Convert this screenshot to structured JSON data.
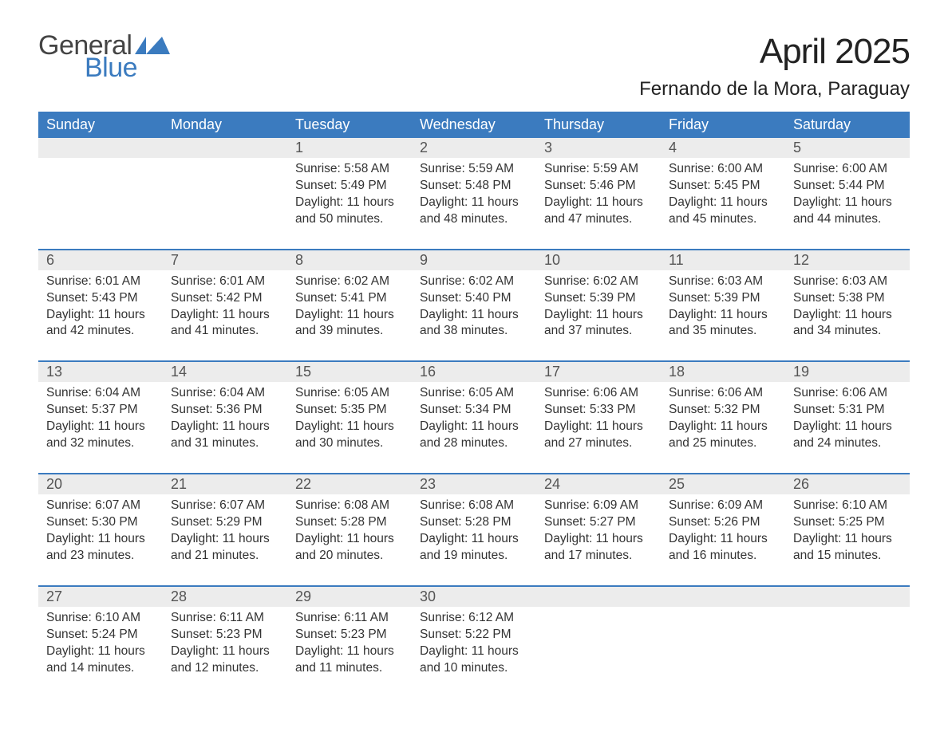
{
  "logo": {
    "word1": "General",
    "word2": "Blue",
    "color_general": "#444444",
    "color_blue": "#3b7bbf"
  },
  "title": "April 2025",
  "location": "Fernando de la Mora, Paraguay",
  "colors": {
    "header_bg": "#3b7bbf",
    "header_text": "#ffffff",
    "daynum_bg": "#ececec",
    "daynum_text": "#555555",
    "body_text": "#333333",
    "separator": "#3b7bbf",
    "page_bg": "#ffffff"
  },
  "typography": {
    "title_fontsize": 44,
    "location_fontsize": 24,
    "header_fontsize": 18,
    "daynum_fontsize": 18,
    "cell_fontsize": 15.5
  },
  "day_names": [
    "Sunday",
    "Monday",
    "Tuesday",
    "Wednesday",
    "Thursday",
    "Friday",
    "Saturday"
  ],
  "weeks": [
    [
      null,
      null,
      {
        "n": "1",
        "sr": "Sunrise: 5:58 AM",
        "ss": "Sunset: 5:49 PM",
        "d1": "Daylight: 11 hours",
        "d2": "and 50 minutes."
      },
      {
        "n": "2",
        "sr": "Sunrise: 5:59 AM",
        "ss": "Sunset: 5:48 PM",
        "d1": "Daylight: 11 hours",
        "d2": "and 48 minutes."
      },
      {
        "n": "3",
        "sr": "Sunrise: 5:59 AM",
        "ss": "Sunset: 5:46 PM",
        "d1": "Daylight: 11 hours",
        "d2": "and 47 minutes."
      },
      {
        "n": "4",
        "sr": "Sunrise: 6:00 AM",
        "ss": "Sunset: 5:45 PM",
        "d1": "Daylight: 11 hours",
        "d2": "and 45 minutes."
      },
      {
        "n": "5",
        "sr": "Sunrise: 6:00 AM",
        "ss": "Sunset: 5:44 PM",
        "d1": "Daylight: 11 hours",
        "d2": "and 44 minutes."
      }
    ],
    [
      {
        "n": "6",
        "sr": "Sunrise: 6:01 AM",
        "ss": "Sunset: 5:43 PM",
        "d1": "Daylight: 11 hours",
        "d2": "and 42 minutes."
      },
      {
        "n": "7",
        "sr": "Sunrise: 6:01 AM",
        "ss": "Sunset: 5:42 PM",
        "d1": "Daylight: 11 hours",
        "d2": "and 41 minutes."
      },
      {
        "n": "8",
        "sr": "Sunrise: 6:02 AM",
        "ss": "Sunset: 5:41 PM",
        "d1": "Daylight: 11 hours",
        "d2": "and 39 minutes."
      },
      {
        "n": "9",
        "sr": "Sunrise: 6:02 AM",
        "ss": "Sunset: 5:40 PM",
        "d1": "Daylight: 11 hours",
        "d2": "and 38 minutes."
      },
      {
        "n": "10",
        "sr": "Sunrise: 6:02 AM",
        "ss": "Sunset: 5:39 PM",
        "d1": "Daylight: 11 hours",
        "d2": "and 37 minutes."
      },
      {
        "n": "11",
        "sr": "Sunrise: 6:03 AM",
        "ss": "Sunset: 5:39 PM",
        "d1": "Daylight: 11 hours",
        "d2": "and 35 minutes."
      },
      {
        "n": "12",
        "sr": "Sunrise: 6:03 AM",
        "ss": "Sunset: 5:38 PM",
        "d1": "Daylight: 11 hours",
        "d2": "and 34 minutes."
      }
    ],
    [
      {
        "n": "13",
        "sr": "Sunrise: 6:04 AM",
        "ss": "Sunset: 5:37 PM",
        "d1": "Daylight: 11 hours",
        "d2": "and 32 minutes."
      },
      {
        "n": "14",
        "sr": "Sunrise: 6:04 AM",
        "ss": "Sunset: 5:36 PM",
        "d1": "Daylight: 11 hours",
        "d2": "and 31 minutes."
      },
      {
        "n": "15",
        "sr": "Sunrise: 6:05 AM",
        "ss": "Sunset: 5:35 PM",
        "d1": "Daylight: 11 hours",
        "d2": "and 30 minutes."
      },
      {
        "n": "16",
        "sr": "Sunrise: 6:05 AM",
        "ss": "Sunset: 5:34 PM",
        "d1": "Daylight: 11 hours",
        "d2": "and 28 minutes."
      },
      {
        "n": "17",
        "sr": "Sunrise: 6:06 AM",
        "ss": "Sunset: 5:33 PM",
        "d1": "Daylight: 11 hours",
        "d2": "and 27 minutes."
      },
      {
        "n": "18",
        "sr": "Sunrise: 6:06 AM",
        "ss": "Sunset: 5:32 PM",
        "d1": "Daylight: 11 hours",
        "d2": "and 25 minutes."
      },
      {
        "n": "19",
        "sr": "Sunrise: 6:06 AM",
        "ss": "Sunset: 5:31 PM",
        "d1": "Daylight: 11 hours",
        "d2": "and 24 minutes."
      }
    ],
    [
      {
        "n": "20",
        "sr": "Sunrise: 6:07 AM",
        "ss": "Sunset: 5:30 PM",
        "d1": "Daylight: 11 hours",
        "d2": "and 23 minutes."
      },
      {
        "n": "21",
        "sr": "Sunrise: 6:07 AM",
        "ss": "Sunset: 5:29 PM",
        "d1": "Daylight: 11 hours",
        "d2": "and 21 minutes."
      },
      {
        "n": "22",
        "sr": "Sunrise: 6:08 AM",
        "ss": "Sunset: 5:28 PM",
        "d1": "Daylight: 11 hours",
        "d2": "and 20 minutes."
      },
      {
        "n": "23",
        "sr": "Sunrise: 6:08 AM",
        "ss": "Sunset: 5:28 PM",
        "d1": "Daylight: 11 hours",
        "d2": "and 19 minutes."
      },
      {
        "n": "24",
        "sr": "Sunrise: 6:09 AM",
        "ss": "Sunset: 5:27 PM",
        "d1": "Daylight: 11 hours",
        "d2": "and 17 minutes."
      },
      {
        "n": "25",
        "sr": "Sunrise: 6:09 AM",
        "ss": "Sunset: 5:26 PM",
        "d1": "Daylight: 11 hours",
        "d2": "and 16 minutes."
      },
      {
        "n": "26",
        "sr": "Sunrise: 6:10 AM",
        "ss": "Sunset: 5:25 PM",
        "d1": "Daylight: 11 hours",
        "d2": "and 15 minutes."
      }
    ],
    [
      {
        "n": "27",
        "sr": "Sunrise: 6:10 AM",
        "ss": "Sunset: 5:24 PM",
        "d1": "Daylight: 11 hours",
        "d2": "and 14 minutes."
      },
      {
        "n": "28",
        "sr": "Sunrise: 6:11 AM",
        "ss": "Sunset: 5:23 PM",
        "d1": "Daylight: 11 hours",
        "d2": "and 12 minutes."
      },
      {
        "n": "29",
        "sr": "Sunrise: 6:11 AM",
        "ss": "Sunset: 5:23 PM",
        "d1": "Daylight: 11 hours",
        "d2": "and 11 minutes."
      },
      {
        "n": "30",
        "sr": "Sunrise: 6:12 AM",
        "ss": "Sunset: 5:22 PM",
        "d1": "Daylight: 11 hours",
        "d2": "and 10 minutes."
      },
      null,
      null,
      null
    ]
  ]
}
